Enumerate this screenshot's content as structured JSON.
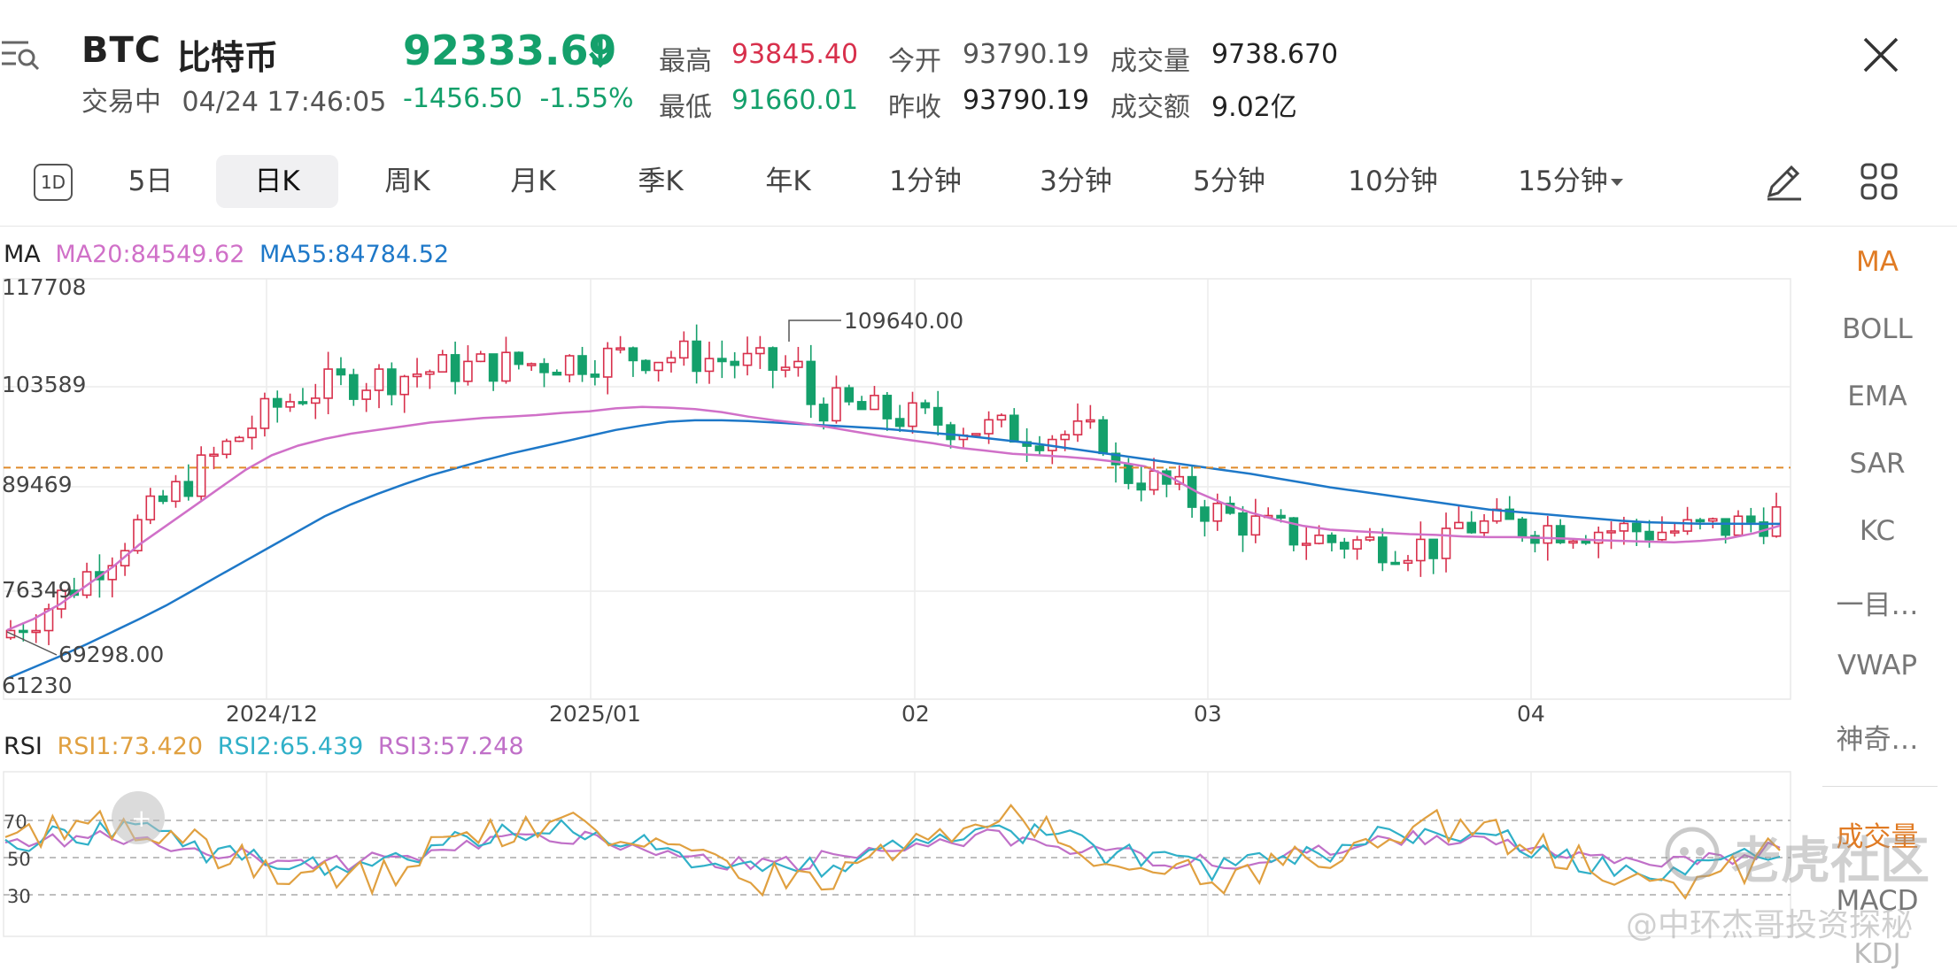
{
  "header": {
    "symbol": "BTC",
    "name": "比特币",
    "status_label": "交易中",
    "timestamp": "04/24 17:46:05",
    "price": "92333.69",
    "change": "-1456.50",
    "change_pct": "-1.55%",
    "stats": {
      "high_label": "最高",
      "high": "93845.40",
      "low_label": "最低",
      "low": "91660.01",
      "open_label": "今开",
      "open": "93790.19",
      "prev_label": "昨收",
      "prev_close": "93790.19",
      "vol_label": "成交量",
      "volume": "9738.670",
      "amt_label": "成交额",
      "amount": "9.02亿"
    }
  },
  "tabs": {
    "one_d": "1D",
    "items": [
      "5日",
      "日K",
      "周K",
      "月K",
      "季K",
      "年K",
      "1分钟",
      "3分钟",
      "5分钟",
      "10分钟",
      "15分钟"
    ],
    "active": "日K"
  },
  "indicator_panel": [
    "MA",
    "BOLL",
    "EMA",
    "SAR",
    "KC",
    "一目…",
    "VWAP",
    "神奇…",
    "成交量",
    "MACD",
    "KDJ"
  ],
  "main_chart": {
    "legend": {
      "name": "MA",
      "ma20": "MA20:84549.62",
      "ma55": "MA55:84784.52"
    },
    "y_ticks": [
      "117708",
      "103589",
      "89469",
      "76349",
      "61230"
    ],
    "x_ticks": [
      "2024/12",
      "2025/01",
      "02",
      "03",
      "04"
    ],
    "max_label": "109640.00",
    "min_label": "69298.00",
    "current_price_line": 92333.69
  },
  "rsi": {
    "legend": {
      "name": "RSI",
      "rsi1": "RSI1:73.420",
      "rsi2": "RSI2:65.439",
      "rsi3": "RSI3:57.248"
    },
    "levels": [
      "70",
      "50",
      "30"
    ]
  },
  "watermark": {
    "brand": "老虎社区",
    "author": "@中环杰哥投资探秘"
  },
  "colors": {
    "up": "#d8304c",
    "down": "#14a06b",
    "ma20": "#d070c8",
    "ma55": "#1e78c8",
    "rsi1": "#e0a040",
    "rsi2": "#30b0c8",
    "rsi3": "#c070c8",
    "active": "#e07b24"
  },
  "chart_data": {
    "type": "candlestick",
    "ylim": [
      61230,
      117708
    ],
    "series": [
      {
        "name": "MA20",
        "values": [
          70500,
          72000,
          74000,
          76500,
          79000,
          82000,
          84500,
          87000,
          89500,
          92000,
          94000,
          95300,
          96200,
          96900,
          97400,
          97900,
          98400,
          98700,
          99000,
          99200,
          99400,
          99700,
          99900,
          100300,
          100500,
          100400,
          100200,
          99800,
          99200,
          98700,
          98300,
          97800,
          97200,
          96600,
          96100,
          95600,
          95000,
          94600,
          94200,
          94000,
          93800,
          93500,
          93100,
          92500,
          91000,
          89000,
          87500,
          86300,
          85300,
          84500,
          84000,
          83800,
          83600,
          83400,
          83300,
          83100,
          83000,
          83000,
          82900,
          82800,
          82600,
          82500,
          82400,
          82300,
          82500,
          82800,
          83500,
          84549
        ]
      },
      {
        "name": "MA55",
        "values": [
          64000,
          65500,
          67000,
          68600,
          70300,
          72000,
          73800,
          75800,
          77800,
          79800,
          81800,
          83800,
          85800,
          87400,
          88800,
          90100,
          91300,
          92300,
          93300,
          94200,
          95000,
          95800,
          96600,
          97400,
          98000,
          98500,
          98700,
          98700,
          98600,
          98400,
          98200,
          98000,
          97800,
          97600,
          97300,
          97000,
          96700,
          96300,
          95900,
          95500,
          95000,
          94500,
          94000,
          93500,
          93000,
          92500,
          92000,
          91500,
          90900,
          90300,
          89700,
          89200,
          88700,
          88200,
          87700,
          87200,
          86700,
          86400,
          86100,
          85800,
          85500,
          85200,
          85000,
          84900,
          84800,
          84800,
          84780,
          84784
        ]
      }
    ]
  }
}
